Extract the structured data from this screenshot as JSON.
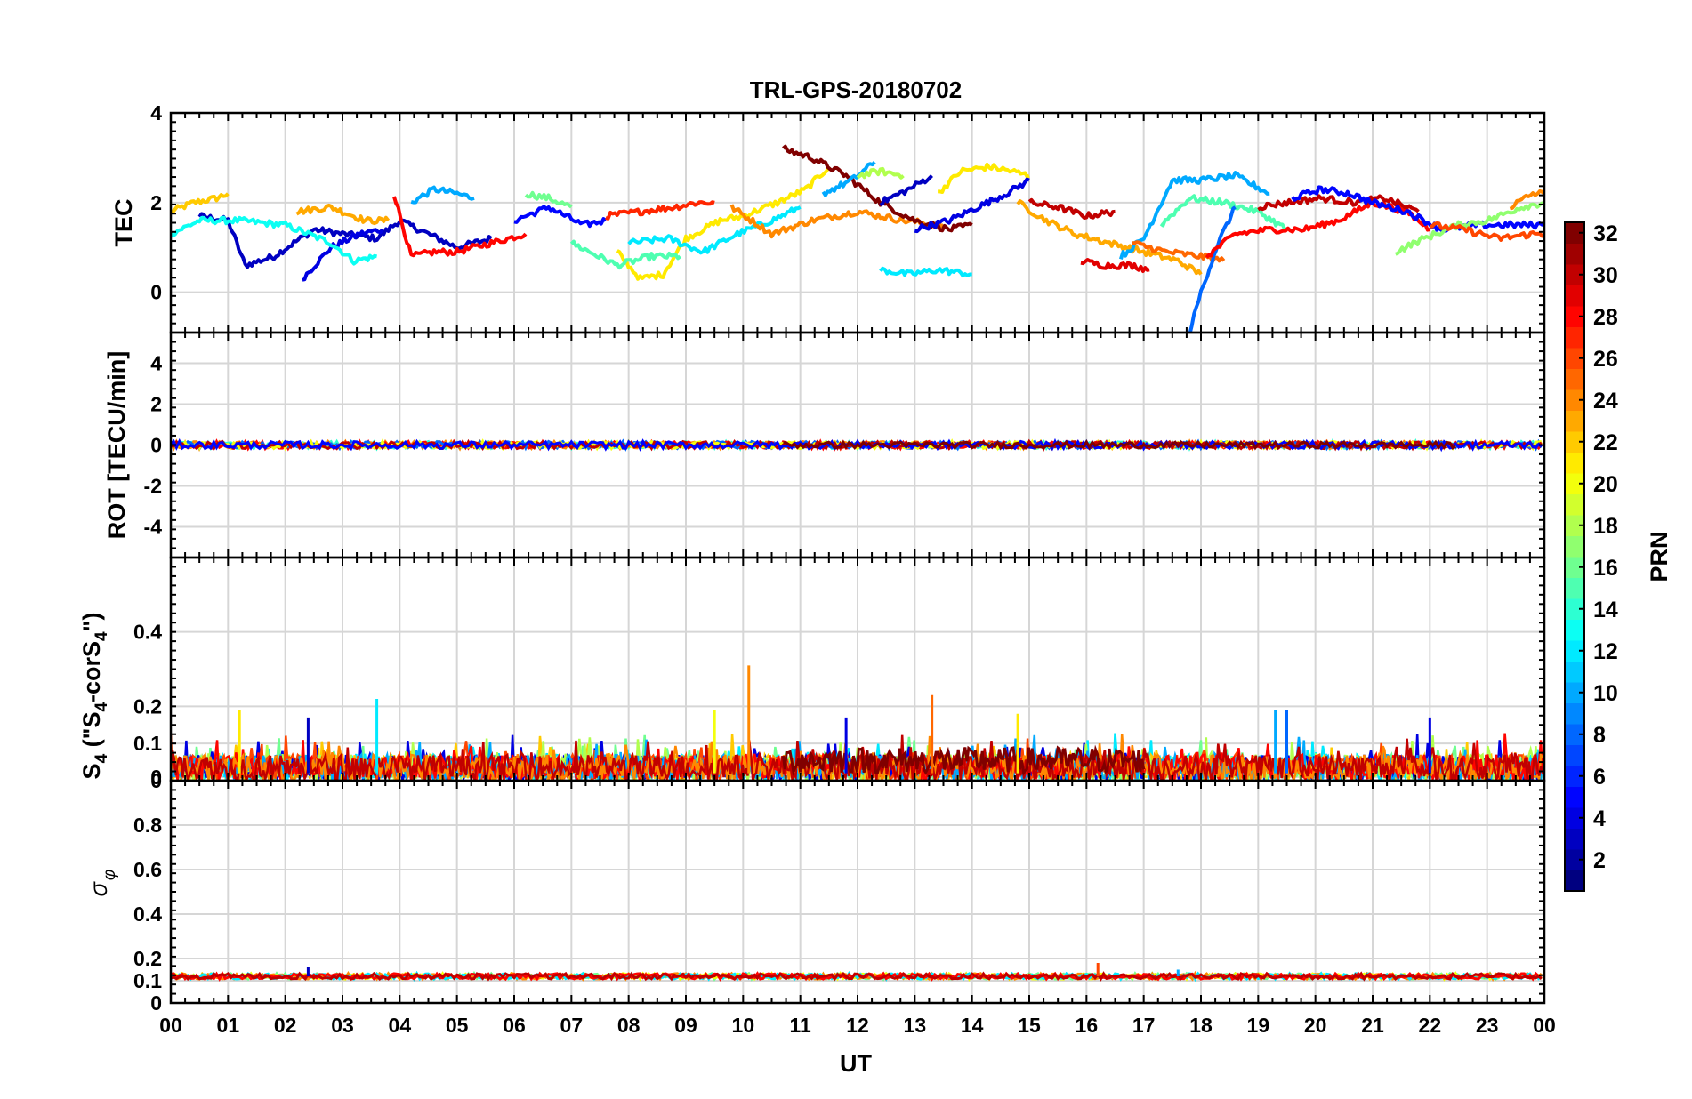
{
  "figure": {
    "title": "TRL-GPS-20180702",
    "x_label": "UT"
  },
  "chart_data": [
    {
      "type": "line",
      "panel": "tec",
      "title": "TRL-GPS-20180702",
      "ylabel": "TEC",
      "ylim": [
        -0.9,
        4
      ],
      "yticks": [
        "0",
        "2",
        "4"
      ],
      "ytick_values": [
        0,
        2,
        4
      ],
      "xlim": [
        0,
        24
      ],
      "xtick_labels": [
        "00",
        "01",
        "02",
        "03",
        "04",
        "05",
        "06",
        "07",
        "08",
        "09",
        "10",
        "11",
        "12",
        "13",
        "14",
        "15",
        "16",
        "17",
        "18",
        "19",
        "20",
        "21",
        "22",
        "23",
        "00"
      ],
      "series": [
        {
          "prn": 22,
          "x": [
            0,
            0.4,
            0.8,
            1.0
          ],
          "y": [
            1.8,
            2.0,
            2.1,
            2.2
          ]
        },
        {
          "prn": 3,
          "x": [
            0.5,
            1.0,
            1.3,
            1.8,
            2.5,
            3.0,
            3.6,
            4.0,
            4.5,
            5.0,
            5.6
          ],
          "y": [
            1.7,
            1.6,
            0.6,
            0.8,
            1.4,
            1.3,
            1.2,
            1.6,
            1.3,
            1.0,
            1.2
          ]
        },
        {
          "prn": 4,
          "x": [
            2.3,
            2.8,
            3.3,
            3.7
          ],
          "y": [
            0.3,
            1.0,
            1.3,
            1.4
          ]
        },
        {
          "prn": 13,
          "x": [
            0,
            0.5,
            1.2,
            2.0,
            2.8,
            3.2,
            3.6
          ],
          "y": [
            1.3,
            1.6,
            1.6,
            1.5,
            1.1,
            0.7,
            0.8
          ]
        },
        {
          "prn": 10,
          "x": [
            4.2,
            4.6,
            5.0,
            5.3
          ],
          "y": [
            2.0,
            2.3,
            2.2,
            2.1
          ]
        },
        {
          "prn": 28,
          "x": [
            3.9,
            4.2,
            4.6,
            5.0,
            5.6,
            6.2
          ],
          "y": [
            2.2,
            0.8,
            0.9,
            0.9,
            1.1,
            1.3
          ]
        },
        {
          "prn": 23,
          "x": [
            2.2,
            2.8,
            3.4,
            3.8
          ],
          "y": [
            1.8,
            1.9,
            1.6,
            1.6
          ]
        },
        {
          "prn": 5,
          "x": [
            6.0,
            6.6,
            7.2,
            7.6
          ],
          "y": [
            1.6,
            1.9,
            1.5,
            1.6
          ]
        },
        {
          "prn": 16,
          "x": [
            6.2,
            6.6,
            7.0
          ],
          "y": [
            2.2,
            2.1,
            1.9
          ]
        },
        {
          "prn": 21,
          "x": [
            7.8,
            8.2,
            8.6,
            9.0,
            9.6,
            10.0,
            10.6,
            11.1,
            11.5
          ],
          "y": [
            0.9,
            0.3,
            0.4,
            1.2,
            1.6,
            1.7,
            2.0,
            2.3,
            2.8
          ]
        },
        {
          "prn": 15,
          "x": [
            7.0,
            7.8,
            8.4,
            8.9
          ],
          "y": [
            1.1,
            0.6,
            0.8,
            0.8
          ]
        },
        {
          "prn": 12,
          "x": [
            8.0,
            8.7,
            9.3,
            9.9,
            10.5,
            11.0
          ],
          "y": [
            1.1,
            1.2,
            0.9,
            1.3,
            1.6,
            1.9
          ]
        },
        {
          "prn": 27,
          "x": [
            7.6,
            8.2,
            8.8,
            9.2,
            9.5
          ],
          "y": [
            1.7,
            1.8,
            1.9,
            2.0,
            2.0
          ]
        },
        {
          "prn": 24,
          "x": [
            9.8,
            10.5,
            11.2,
            12.0,
            12.8,
            13.5
          ],
          "y": [
            1.9,
            1.3,
            1.6,
            1.8,
            1.6,
            1.5
          ]
        },
        {
          "prn": 32,
          "x": [
            10.7,
            11.2,
            11.8,
            12.4,
            13.0,
            13.6,
            14.0
          ],
          "y": [
            3.2,
            3.0,
            2.6,
            2.0,
            1.6,
            1.4,
            1.5
          ]
        },
        {
          "prn": 10,
          "x": [
            11.4,
            11.9,
            12.3
          ],
          "y": [
            2.2,
            2.5,
            2.9
          ]
        },
        {
          "prn": 18,
          "x": [
            12.0,
            12.4,
            12.8
          ],
          "y": [
            2.6,
            2.7,
            2.6
          ]
        },
        {
          "prn": 3,
          "x": [
            12.4,
            12.9,
            13.3
          ],
          "y": [
            2.0,
            2.3,
            2.6
          ]
        },
        {
          "prn": 21,
          "x": [
            13.4,
            13.8,
            14.3,
            14.7,
            15.0
          ],
          "y": [
            2.2,
            2.7,
            2.8,
            2.7,
            2.6
          ]
        },
        {
          "prn": 4,
          "x": [
            13.0,
            13.6,
            14.1,
            14.6,
            15.0
          ],
          "y": [
            1.4,
            1.6,
            1.9,
            2.2,
            2.5
          ]
        },
        {
          "prn": 12,
          "x": [
            12.4,
            12.9,
            13.4,
            14.0
          ],
          "y": [
            0.5,
            0.4,
            0.5,
            0.4
          ]
        },
        {
          "prn": 30,
          "x": [
            15.0,
            15.5,
            16.0,
            16.5
          ],
          "y": [
            2.0,
            1.9,
            1.7,
            1.8
          ]
        },
        {
          "prn": 23,
          "x": [
            14.8,
            15.3,
            15.8,
            16.4,
            17.0,
            17.6,
            18.0
          ],
          "y": [
            2.0,
            1.6,
            1.3,
            1.1,
            0.9,
            0.7,
            0.4
          ]
        },
        {
          "prn": 29,
          "x": [
            15.9,
            16.3,
            16.8,
            17.1
          ],
          "y": [
            0.7,
            0.6,
            0.6,
            0.5
          ]
        },
        {
          "prn": 10,
          "x": [
            16.6,
            17.0,
            17.5,
            18.0,
            18.6,
            19.2
          ],
          "y": [
            0.8,
            1.2,
            2.5,
            2.5,
            2.6,
            2.2
          ]
        },
        {
          "prn": 15,
          "x": [
            17.3,
            17.8,
            18.4,
            19.0,
            19.5
          ],
          "y": [
            1.5,
            2.1,
            2.0,
            1.8,
            1.4
          ]
        },
        {
          "prn": 25,
          "x": [
            16.8,
            17.4,
            18.0,
            18.4
          ],
          "y": [
            1.1,
            0.9,
            0.8,
            0.7
          ]
        },
        {
          "prn": 8,
          "x": [
            17.8,
            18.0,
            18.3,
            18.6
          ],
          "y": [
            -0.9,
            0.0,
            1.1,
            1.9
          ]
        },
        {
          "prn": 28,
          "x": [
            18.1,
            18.6,
            19.2,
            19.8,
            20.4,
            21.0,
            21.6,
            22.0
          ],
          "y": [
            0.8,
            1.3,
            1.4,
            1.4,
            1.6,
            2.0,
            1.8,
            1.4
          ]
        },
        {
          "prn": 30,
          "x": [
            19.0,
            19.5,
            20.1,
            20.7,
            21.2,
            21.8
          ],
          "y": [
            1.9,
            2.0,
            2.1,
            2.0,
            2.1,
            1.8
          ]
        },
        {
          "prn": 5,
          "x": [
            19.6,
            20.1,
            20.6,
            21.0,
            21.6,
            22.2,
            22.8,
            23.4,
            24.0
          ],
          "y": [
            2.1,
            2.3,
            2.2,
            2.0,
            1.8,
            1.4,
            1.5,
            1.5,
            1.5
          ]
        },
        {
          "prn": 17,
          "x": [
            21.4,
            21.9,
            22.5,
            23.0,
            23.6,
            24.0
          ],
          "y": [
            0.9,
            1.2,
            1.5,
            1.6,
            1.9,
            2.0
          ]
        },
        {
          "prn": 26,
          "x": [
            22.0,
            22.6,
            23.2,
            23.8,
            24.0
          ],
          "y": [
            1.5,
            1.4,
            1.2,
            1.3,
            1.3
          ]
        },
        {
          "prn": 24,
          "x": [
            23.4,
            23.8,
            24.0
          ],
          "y": [
            1.9,
            2.2,
            2.2
          ]
        }
      ]
    },
    {
      "type": "line",
      "panel": "rot",
      "ylabel": "ROT [TECU/min]",
      "ylim": [
        -5.5,
        5.5
      ],
      "yticks": [
        "-4",
        "-2",
        "0",
        "2",
        "4"
      ],
      "ytick_values": [
        -4,
        -2,
        0,
        2,
        4
      ],
      "xlim": [
        0,
        24
      ],
      "series_note": "All PRNs ≈ 0 TECU/min",
      "series": [
        {
          "prn": 14,
          "x": [
            0,
            24
          ],
          "y": [
            0,
            0
          ]
        },
        {
          "prn": 28,
          "x": [
            0,
            24
          ],
          "y": [
            0,
            0
          ]
        },
        {
          "prn": 32,
          "x": [
            10.7,
            22.5
          ],
          "y": [
            0,
            0
          ]
        }
      ]
    },
    {
      "type": "line",
      "panel": "s4",
      "ylabel_main": "S",
      "ylabel_sub": "4",
      "ylabel_rest": " (\"S",
      "ylabel_sub2": "4",
      "ylabel_pre": "-corS",
      "ylabel_sub3": "4",
      "ylabel_end": "\")",
      "ylim": [
        0,
        0.6
      ],
      "yticks": [
        "0",
        "0",
        "0.1",
        "0.2",
        "0.4"
      ],
      "ytick_values": [
        0,
        0.01,
        0.1,
        0.2,
        0.4
      ],
      "xlim": [
        0,
        24
      ],
      "series_note": "Noisy S4 values 0–0.1 for all PRNs",
      "spikes": [
        {
          "x": 1.2,
          "y": 0.19
        },
        {
          "x": 2.4,
          "y": 0.17
        },
        {
          "x": 3.6,
          "y": 0.22
        },
        {
          "x": 9.5,
          "y": 0.19
        },
        {
          "x": 10.1,
          "y": 0.31
        },
        {
          "x": 11.8,
          "y": 0.17
        },
        {
          "x": 13.3,
          "y": 0.23
        },
        {
          "x": 14.8,
          "y": 0.18
        },
        {
          "x": 19.3,
          "y": 0.19
        },
        {
          "x": 19.5,
          "y": 0.19
        },
        {
          "x": 22.0,
          "y": 0.17
        }
      ]
    },
    {
      "type": "line",
      "panel": "sigma_phi",
      "ylabel_main": "σ",
      "ylabel_sub": "φ",
      "ylim": [
        0,
        1.0
      ],
      "yticks": [
        "0",
        "0.1",
        "0.2",
        "0.4",
        "0.6",
        "0.8"
      ],
      "ytick_values": [
        0,
        0.1,
        0.2,
        0.4,
        0.6,
        0.8
      ],
      "xlim": [
        0,
        24
      ],
      "series_note": "σφ ≈ 0.11–0.13 for all PRNs",
      "spikes": [
        {
          "x": 2.4,
          "y": 0.16
        },
        {
          "x": 16.2,
          "y": 0.18
        },
        {
          "x": 17.6,
          "y": 0.15
        }
      ]
    }
  ],
  "colorbar": {
    "label": "PRN",
    "min": 1,
    "max": 32,
    "ticks": [
      "2",
      "4",
      "6",
      "8",
      "10",
      "12",
      "14",
      "16",
      "18",
      "20",
      "22",
      "24",
      "26",
      "28",
      "30",
      "32"
    ],
    "tick_values": [
      2,
      4,
      6,
      8,
      10,
      12,
      14,
      16,
      18,
      20,
      22,
      24,
      26,
      28,
      30,
      32
    ]
  }
}
